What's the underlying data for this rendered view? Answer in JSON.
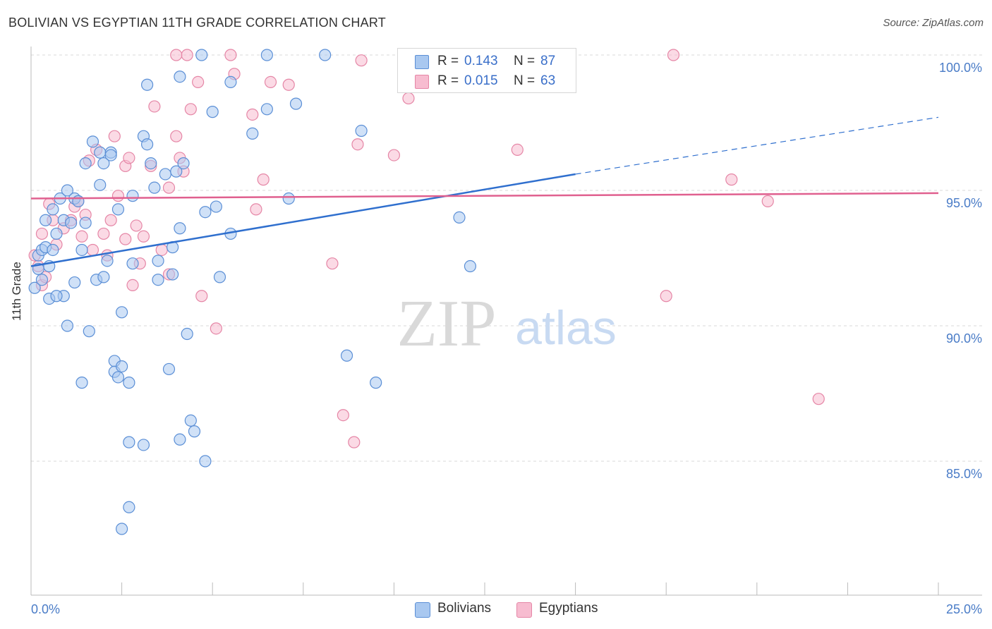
{
  "title": "BOLIVIAN VS EGYPTIAN 11TH GRADE CORRELATION CHART",
  "source": "Source: ZipAtlas.com",
  "watermark": {
    "zip": "ZIP",
    "atlas": "atlas"
  },
  "legend": {
    "rows": [
      {
        "r_label": "R =",
        "r_value": "0.143",
        "n_label": "N =",
        "n_value": "87"
      },
      {
        "r_label": "R =",
        "r_value": "0.015",
        "n_label": "N =",
        "n_value": "63"
      }
    ]
  },
  "bottom_legend": {
    "bolivians": "Bolivians",
    "egyptians": "Egyptians"
  },
  "colors": {
    "bolivian_fill": "#a9c8f0",
    "bolivian_stroke": "#5b8fd6",
    "bolivian_line": "#2f6fce",
    "egyptian_fill": "#f7bcd0",
    "egyptian_stroke": "#e586a6",
    "egyptian_line": "#e0608f",
    "tick_text": "#4a7cc7",
    "grid": "#d8d8d8"
  },
  "chart_data": {
    "type": "scatter",
    "title": "BOLIVIAN VS EGYPTIAN 11TH GRADE CORRELATION CHART",
    "xlabel": "",
    "ylabel": "11th Grade",
    "xlim": [
      0,
      25
    ],
    "ylim": [
      80.5,
      100.8
    ],
    "x_ticks": [
      "0.0%",
      "25.0%"
    ],
    "y_ticks": [
      {
        "value": 100,
        "label": "100.0%"
      },
      {
        "value": 95,
        "label": "95.0%"
      },
      {
        "value": 90,
        "label": "90.0%"
      },
      {
        "value": 85,
        "label": "85.0%"
      }
    ],
    "grid": true,
    "legend_position": "top-center",
    "series": [
      {
        "name": "Bolivians",
        "r": 0.143,
        "n": 87,
        "trend": {
          "x": [
            0,
            15
          ],
          "y": [
            92.2,
            95.6
          ],
          "dashed_to": [
            25,
            97.7
          ]
        },
        "points": [
          [
            0.1,
            91.4
          ],
          [
            0.2,
            92.6
          ],
          [
            0.3,
            92.8
          ],
          [
            0.4,
            92.9
          ],
          [
            0.3,
            91.7
          ],
          [
            0.5,
            92.2
          ],
          [
            0.6,
            92.8
          ],
          [
            0.4,
            93.9
          ],
          [
            0.6,
            94.3
          ],
          [
            0.7,
            93.4
          ],
          [
            0.8,
            94.7
          ],
          [
            1.0,
            95.0
          ],
          [
            1.2,
            94.7
          ],
          [
            0.9,
            93.9
          ],
          [
            1.1,
            93.8
          ],
          [
            0.5,
            91.0
          ],
          [
            0.9,
            91.1
          ],
          [
            1.2,
            91.6
          ],
          [
            1.4,
            92.8
          ],
          [
            1.5,
            93.8
          ],
          [
            1.0,
            90.0
          ],
          [
            1.6,
            89.8
          ],
          [
            1.8,
            91.7
          ],
          [
            2.0,
            91.8
          ],
          [
            2.1,
            92.4
          ],
          [
            1.4,
            87.9
          ],
          [
            2.3,
            88.7
          ],
          [
            2.3,
            88.3
          ],
          [
            2.5,
            88.5
          ],
          [
            2.7,
            87.9
          ],
          [
            2.5,
            90.5
          ],
          [
            2.7,
            85.7
          ],
          [
            3.1,
            85.6
          ],
          [
            2.7,
            83.3
          ],
          [
            2.5,
            82.5
          ],
          [
            1.5,
            96.0
          ],
          [
            1.7,
            96.8
          ],
          [
            1.9,
            96.4
          ],
          [
            2.0,
            96.0
          ],
          [
            2.2,
            96.4
          ],
          [
            2.2,
            96.3
          ],
          [
            1.9,
            95.2
          ],
          [
            2.4,
            94.3
          ],
          [
            2.8,
            94.8
          ],
          [
            2.8,
            92.3
          ],
          [
            3.1,
            97.0
          ],
          [
            3.2,
            96.7
          ],
          [
            3.3,
            96.0
          ],
          [
            3.4,
            95.1
          ],
          [
            3.5,
            91.7
          ],
          [
            3.5,
            92.4
          ],
          [
            3.7,
            95.6
          ],
          [
            3.9,
            92.9
          ],
          [
            3.9,
            91.9
          ],
          [
            4.0,
            95.7
          ],
          [
            4.2,
            96.0
          ],
          [
            4.1,
            93.6
          ],
          [
            4.3,
            89.7
          ],
          [
            4.4,
            86.5
          ],
          [
            4.5,
            86.1
          ],
          [
            4.1,
            85.8
          ],
          [
            4.8,
            85.0
          ],
          [
            4.8,
            94.2
          ],
          [
            5.1,
            94.4
          ],
          [
            5.2,
            91.8
          ],
          [
            5.5,
            93.4
          ],
          [
            5.0,
            97.9
          ],
          [
            5.5,
            99.0
          ],
          [
            6.1,
            97.1
          ],
          [
            6.5,
            100.0
          ],
          [
            6.5,
            98.0
          ],
          [
            4.7,
            100.0
          ],
          [
            3.2,
            98.9
          ],
          [
            4.1,
            99.2
          ],
          [
            8.1,
            100.0
          ],
          [
            7.3,
            98.2
          ],
          [
            7.1,
            94.7
          ],
          [
            8.7,
            88.9
          ],
          [
            9.1,
            97.2
          ],
          [
            9.5,
            87.9
          ],
          [
            11.8,
            94.0
          ],
          [
            12.1,
            92.2
          ],
          [
            3.8,
            88.4
          ],
          [
            2.4,
            88.1
          ],
          [
            1.3,
            94.6
          ],
          [
            0.7,
            91.1
          ],
          [
            0.2,
            92.1
          ]
        ]
      },
      {
        "name": "Egyptians",
        "r": 0.015,
        "n": 63,
        "trend": {
          "x": [
            0,
            25
          ],
          "y": [
            94.7,
            94.9
          ]
        },
        "points": [
          [
            0.1,
            92.6
          ],
          [
            0.2,
            92.2
          ],
          [
            0.3,
            91.5
          ],
          [
            0.3,
            93.4
          ],
          [
            0.5,
            94.5
          ],
          [
            0.6,
            93.9
          ],
          [
            0.7,
            93.0
          ],
          [
            0.9,
            93.6
          ],
          [
            1.1,
            93.9
          ],
          [
            1.2,
            94.4
          ],
          [
            1.3,
            94.6
          ],
          [
            1.4,
            93.3
          ],
          [
            1.6,
            96.1
          ],
          [
            1.7,
            92.8
          ],
          [
            1.8,
            96.5
          ],
          [
            2.0,
            93.4
          ],
          [
            2.1,
            92.6
          ],
          [
            2.2,
            93.9
          ],
          [
            2.3,
            97.0
          ],
          [
            2.4,
            94.8
          ],
          [
            2.6,
            93.2
          ],
          [
            2.6,
            95.9
          ],
          [
            2.7,
            96.2
          ],
          [
            2.8,
            91.5
          ],
          [
            3.0,
            92.3
          ],
          [
            3.1,
            93.3
          ],
          [
            3.3,
            95.9
          ],
          [
            3.4,
            98.1
          ],
          [
            3.6,
            92.8
          ],
          [
            3.8,
            91.9
          ],
          [
            3.8,
            95.1
          ],
          [
            4.1,
            96.2
          ],
          [
            4.0,
            97.0
          ],
          [
            4.2,
            95.7
          ],
          [
            4.4,
            98.0
          ],
          [
            4.3,
            100.0
          ],
          [
            4.6,
            99.0
          ],
          [
            4.7,
            91.1
          ],
          [
            5.1,
            89.9
          ],
          [
            5.5,
            100.0
          ],
          [
            5.6,
            99.3
          ],
          [
            6.1,
            97.8
          ],
          [
            6.2,
            94.3
          ],
          [
            6.4,
            95.4
          ],
          [
            6.6,
            99.0
          ],
          [
            7.1,
            98.9
          ],
          [
            8.3,
            92.3
          ],
          [
            8.6,
            86.7
          ],
          [
            8.9,
            85.7
          ],
          [
            9.0,
            96.7
          ],
          [
            9.1,
            99.8
          ],
          [
            10.0,
            96.3
          ],
          [
            10.4,
            98.4
          ],
          [
            13.4,
            96.5
          ],
          [
            17.7,
            100.0
          ],
          [
            17.5,
            91.1
          ],
          [
            19.3,
            95.4
          ],
          [
            20.3,
            94.6
          ],
          [
            21.7,
            87.3
          ],
          [
            4.0,
            100.0
          ],
          [
            0.4,
            91.8
          ],
          [
            1.5,
            94.1
          ],
          [
            2.9,
            93.7
          ]
        ]
      }
    ]
  }
}
